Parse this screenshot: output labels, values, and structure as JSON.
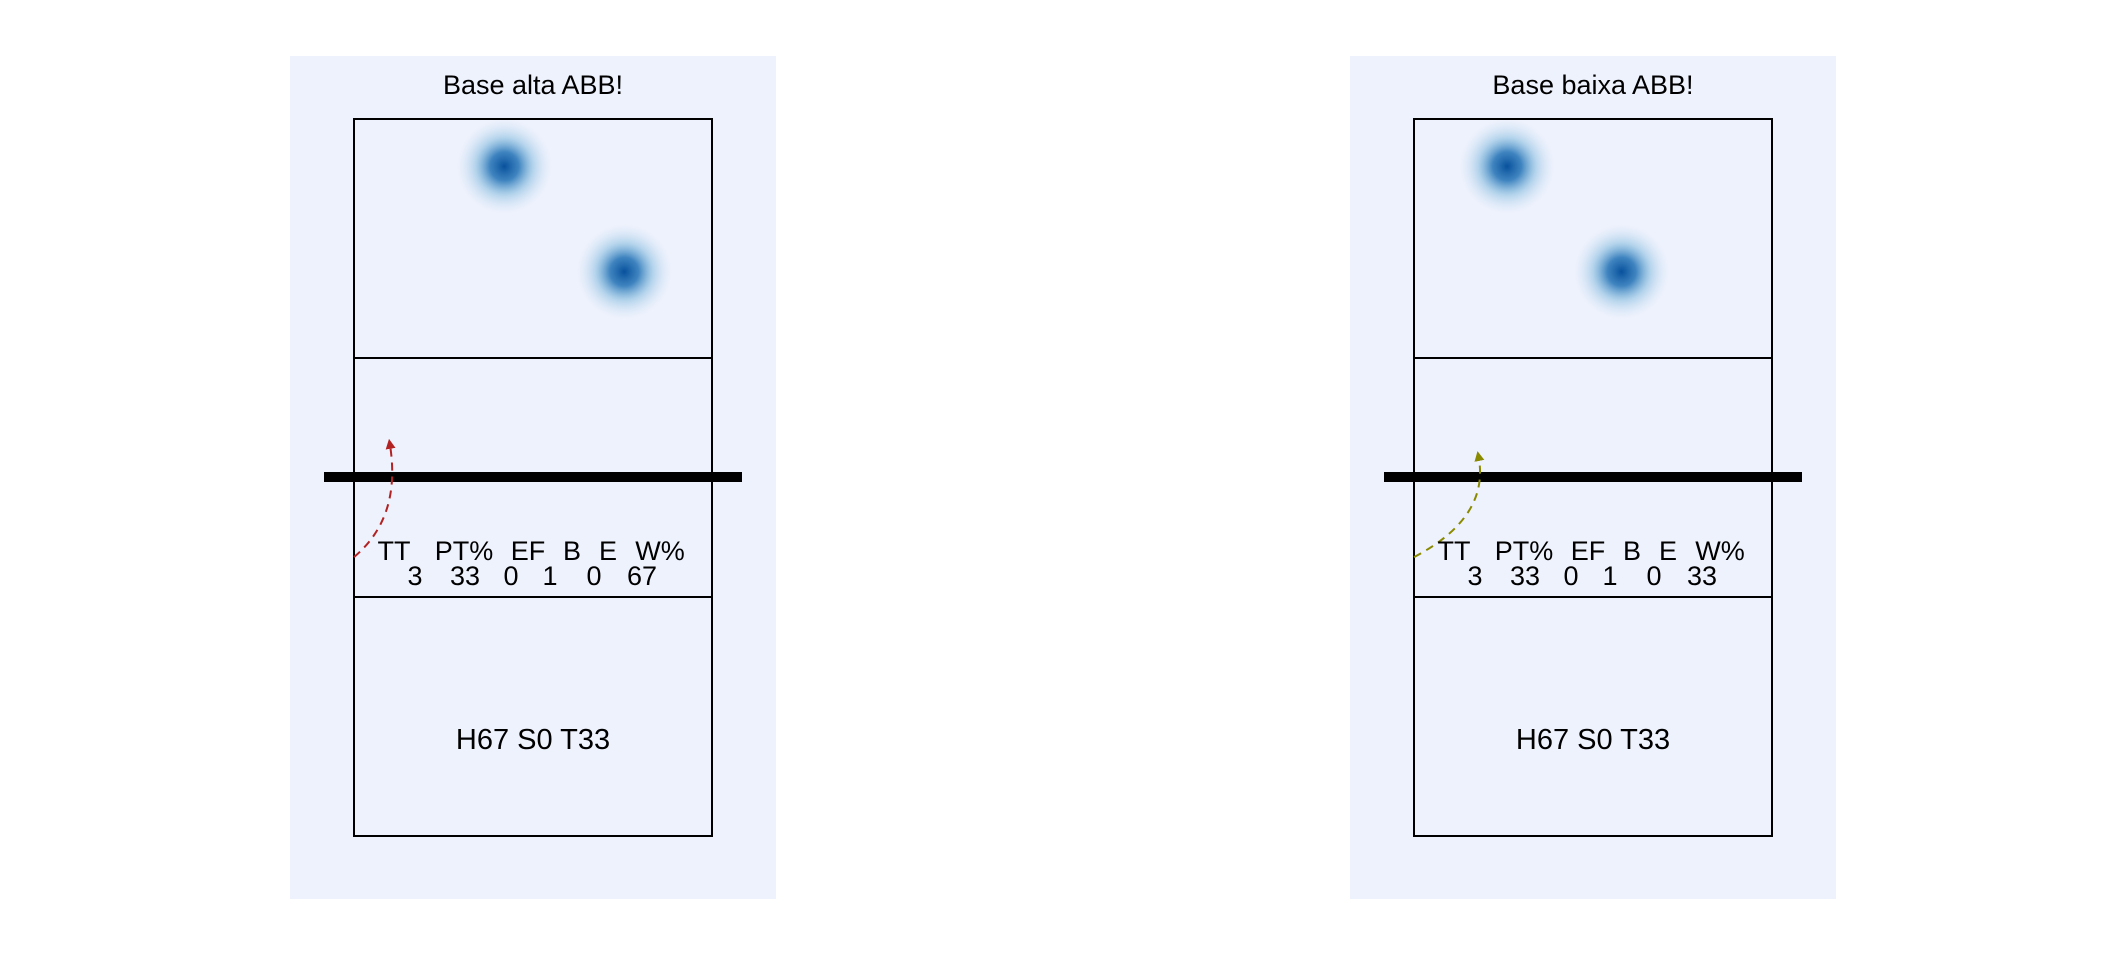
{
  "chart_data": [
    {
      "type": "heatmap",
      "title": "Base alta ABB!",
      "panel_background": "#eef2fd",
      "heat_color": "#0b5fb0",
      "hotspots": [
        {
          "x": 0.42,
          "y": 0.934
        },
        {
          "x": 0.755,
          "y": 0.787
        }
      ],
      "trajectory": {
        "color": "#b22222",
        "start": {
          "x": 0,
          "y": 0.389
        },
        "end": {
          "x": 0.1,
          "y": 0.547
        }
      },
      "stats": {
        "headers": [
          "TT",
          "PT%",
          "EF",
          "B",
          "E",
          "W%"
        ],
        "values": [
          "3",
          "33",
          "0",
          "1",
          "0",
          "67"
        ]
      },
      "summary": "H67 S0 T33"
    },
    {
      "type": "heatmap",
      "title": "Base baixa ABB!",
      "panel_background": "#eef2fd",
      "heat_color": "#0b5fb0",
      "hotspots": [
        {
          "x": 0.26,
          "y": 0.934
        },
        {
          "x": 0.58,
          "y": 0.787
        }
      ],
      "trajectory": {
        "color": "#8a8a00",
        "start": {
          "x": 0,
          "y": 0.389
        },
        "end": {
          "x": 0.18,
          "y": 0.53
        }
      },
      "stats": {
        "headers": [
          "TT",
          "PT%",
          "EF",
          "B",
          "E",
          "W%"
        ],
        "values": [
          "3",
          "33",
          "0",
          "1",
          "0",
          "33"
        ]
      },
      "summary": "H67 S0 T33"
    }
  ]
}
